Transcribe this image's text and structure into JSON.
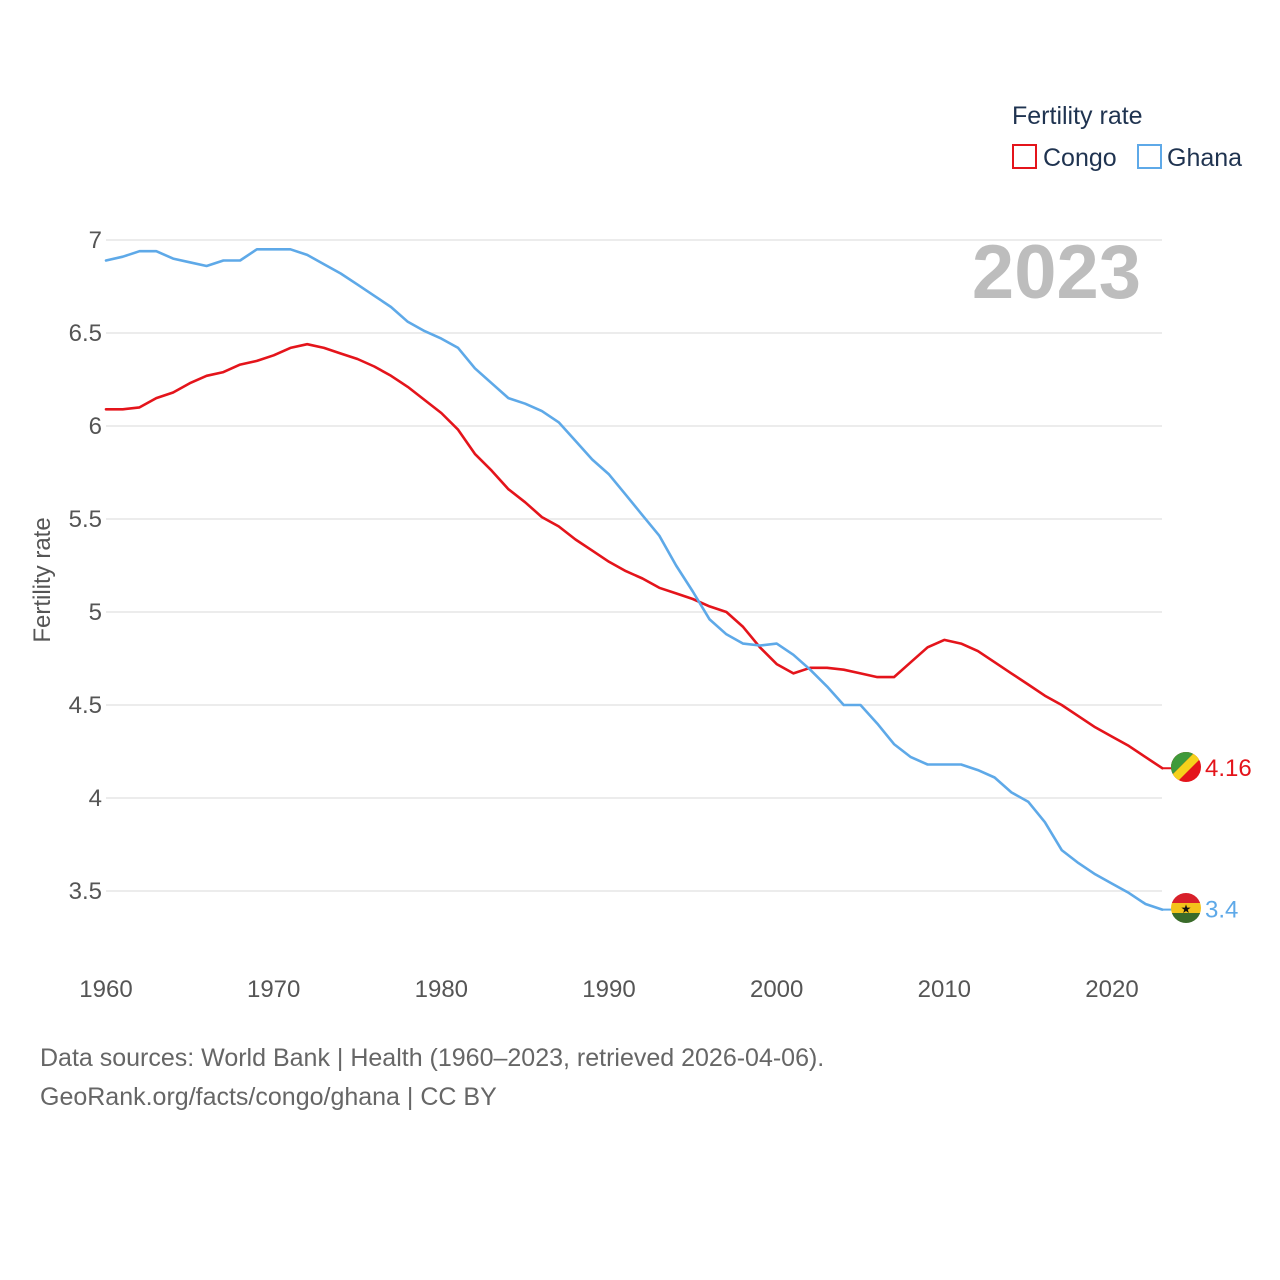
{
  "chart_data": {
    "type": "line",
    "year_label": "2023",
    "ylabel": "Fertility rate",
    "xlabel": "",
    "xlim": [
      1960,
      2023
    ],
    "ylim": [
      3.25,
      7.0
    ],
    "x_ticks": [
      "1960",
      "1970",
      "1980",
      "1990",
      "2000",
      "2010",
      "2020"
    ],
    "y_ticks": [
      "3.5",
      "4",
      "4.5",
      "5",
      "5.5",
      "6",
      "6.5",
      "7"
    ],
    "legend": {
      "title": "Fertility rate",
      "position": "top-right"
    },
    "x": [
      1960,
      1961,
      1962,
      1963,
      1964,
      1965,
      1966,
      1967,
      1968,
      1969,
      1970,
      1971,
      1972,
      1973,
      1974,
      1975,
      1976,
      1977,
      1978,
      1979,
      1980,
      1981,
      1982,
      1983,
      1984,
      1985,
      1986,
      1987,
      1988,
      1989,
      1990,
      1991,
      1992,
      1993,
      1994,
      1995,
      1996,
      1997,
      1998,
      1999,
      2000,
      2001,
      2002,
      2003,
      2004,
      2005,
      2006,
      2007,
      2008,
      2009,
      2010,
      2011,
      2012,
      2013,
      2014,
      2015,
      2016,
      2017,
      2018,
      2019,
      2020,
      2021,
      2022,
      2023
    ],
    "series": [
      {
        "name": "Congo",
        "color": "#e4141b",
        "end_label": "4.16",
        "values": [
          6.09,
          6.09,
          6.1,
          6.15,
          6.18,
          6.23,
          6.27,
          6.29,
          6.33,
          6.35,
          6.38,
          6.42,
          6.44,
          6.42,
          6.39,
          6.36,
          6.32,
          6.27,
          6.21,
          6.14,
          6.07,
          5.98,
          5.85,
          5.76,
          5.66,
          5.59,
          5.51,
          5.46,
          5.39,
          5.33,
          5.27,
          5.22,
          5.18,
          5.13,
          5.1,
          5.07,
          5.03,
          5.0,
          4.92,
          4.81,
          4.72,
          4.67,
          4.7,
          4.7,
          4.69,
          4.67,
          4.65,
          4.65,
          4.73,
          4.81,
          4.85,
          4.83,
          4.79,
          4.73,
          4.67,
          4.61,
          4.55,
          4.5,
          4.44,
          4.38,
          4.33,
          4.28,
          4.22,
          4.16
        ]
      },
      {
        "name": "Ghana",
        "color": "#5ea9e8",
        "end_label": "3.4",
        "values": [
          6.89,
          6.91,
          6.94,
          6.94,
          6.9,
          6.88,
          6.86,
          6.89,
          6.89,
          6.95,
          6.95,
          6.95,
          6.92,
          6.87,
          6.82,
          6.76,
          6.7,
          6.64,
          6.56,
          6.51,
          6.47,
          6.42,
          6.31,
          6.23,
          6.15,
          6.12,
          6.08,
          6.02,
          5.92,
          5.82,
          5.74,
          5.63,
          5.52,
          5.41,
          5.25,
          5.11,
          4.96,
          4.88,
          4.83,
          4.82,
          4.83,
          4.77,
          4.69,
          4.6,
          4.5,
          4.5,
          4.4,
          4.29,
          4.22,
          4.18,
          4.18,
          4.18,
          4.15,
          4.11,
          4.03,
          3.98,
          3.87,
          3.72,
          3.65,
          3.59,
          3.54,
          3.49,
          3.43,
          3.4
        ]
      }
    ]
  },
  "footer": {
    "line1": "Data sources: World Bank | Health (1960–2023, retrieved 2026-04-06).",
    "line2": "GeoRank.org/facts/congo/ghana | CC BY"
  },
  "flags": {
    "congo": "congo-flag-icon",
    "ghana": "ghana-flag-icon",
    "ghana_star": "★"
  }
}
